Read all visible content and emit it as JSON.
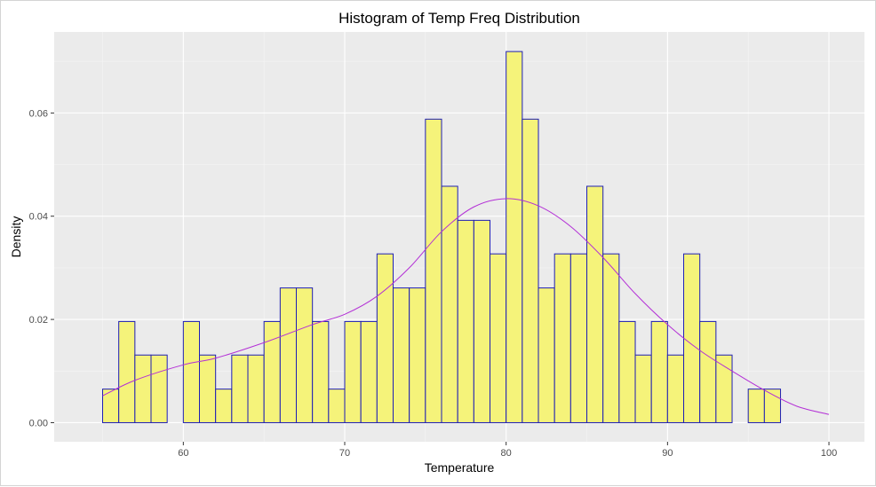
{
  "chart_data": {
    "type": "histogram",
    "title": "Histogram of Temp Freq Distribution",
    "xlabel": "Temperature",
    "ylabel": "Density",
    "xlim": [
      52,
      102.2
    ],
    "ylim": [
      -0.0037,
      0.0757
    ],
    "x_ticks": [
      60,
      70,
      80,
      90,
      100
    ],
    "y_ticks": [
      0.0,
      0.02,
      0.04,
      0.06
    ],
    "x_tick_labels": [
      "60",
      "70",
      "80",
      "90",
      "100"
    ],
    "y_tick_labels": [
      "0.00",
      "0.02",
      "0.04",
      "0.06"
    ],
    "grid": true,
    "bins": {
      "start": 55,
      "width": 1,
      "densities": [
        0.0065,
        0.0196,
        0.0131,
        0.0131,
        0,
        0.0196,
        0.0131,
        0.0065,
        0.0131,
        0.0131,
        0.0196,
        0.0261,
        0.0261,
        0.0196,
        0.0065,
        0.0196,
        0.0196,
        0.0327,
        0.0261,
        0.0261,
        0.0588,
        0.0458,
        0.0392,
        0.0392,
        0.0327,
        0.0719,
        0.0588,
        0.0261,
        0.0327,
        0.0327,
        0.0458,
        0.0327,
        0.0196,
        0.0131,
        0.0196,
        0.0131,
        0.0327,
        0.0196,
        0.0131,
        0,
        0.0065,
        0.0065
      ]
    },
    "density_curve": {
      "x": [
        55,
        57,
        60,
        62,
        65,
        68,
        70,
        72,
        74,
        76,
        78,
        80,
        82,
        84,
        86,
        88,
        90,
        92,
        94,
        96,
        98,
        100
      ],
      "y": [
        0.0052,
        0.0082,
        0.0112,
        0.0125,
        0.0155,
        0.019,
        0.021,
        0.0245,
        0.03,
        0.037,
        0.0418,
        0.0434,
        0.042,
        0.038,
        0.032,
        0.025,
        0.019,
        0.014,
        0.01,
        0.0063,
        0.0032,
        0.0016
      ]
    },
    "colors": {
      "panel_background": "#ebebeb",
      "grid_major": "#ffffff",
      "grid_minor": "#f5f5f5",
      "bar_fill": "#f5f37a",
      "bar_outline": "#1f1fb5",
      "density_line": "#b32fd6"
    }
  }
}
